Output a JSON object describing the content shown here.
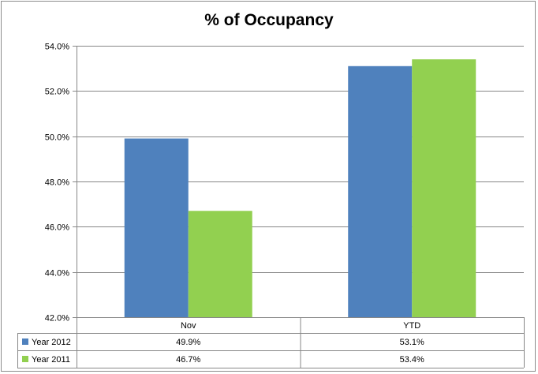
{
  "chart_data": {
    "type": "bar",
    "title": "% of Occupancy",
    "categories": [
      "Nov",
      "YTD"
    ],
    "series": [
      {
        "name": "Year 2012",
        "values": [
          49.9,
          53.1
        ],
        "labels": [
          "49.9%",
          "53.1%"
        ],
        "color": "#4f81bd"
      },
      {
        "name": "Year 2011",
        "values": [
          46.7,
          53.4
        ],
        "labels": [
          "46.7%",
          "53.4%"
        ],
        "color": "#92d050"
      }
    ],
    "ylim": [
      42.0,
      54.0
    ],
    "yticks": [
      42.0,
      44.0,
      46.0,
      48.0,
      50.0,
      52.0,
      54.0
    ],
    "ytick_labels": [
      "42.0%",
      "44.0%",
      "46.0%",
      "48.0%",
      "50.0%",
      "52.0%",
      "54.0%"
    ],
    "grid": true,
    "legend": "data-table"
  }
}
